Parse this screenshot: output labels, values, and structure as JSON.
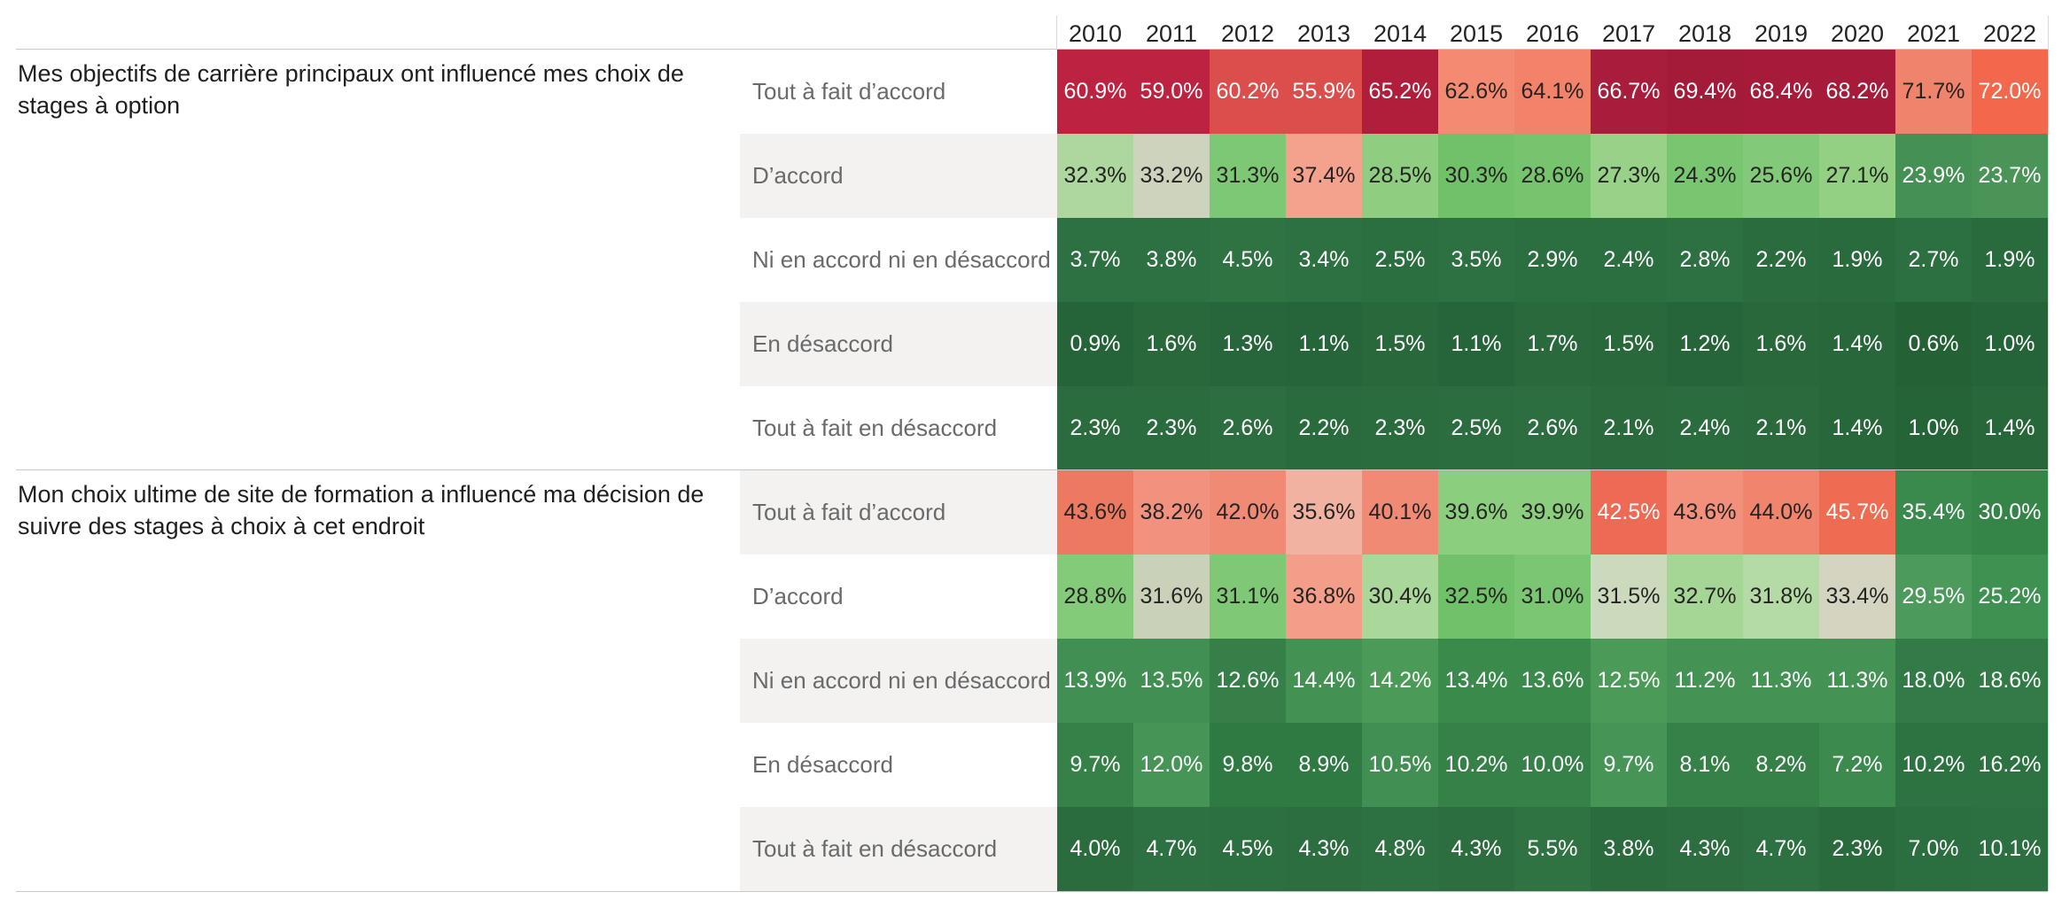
{
  "styles": {
    "background": "#ffffff",
    "stripe": "#f3f2f1",
    "grid_line": "#c9c9c9",
    "separator_line": "#d9d9d9",
    "cell_text_dark": "#252423",
    "cell_text_light": "#ffffff",
    "label_text": "#6a6a6a",
    "year_text": "#252423",
    "question_text": "#1f1f1f",
    "heat_red_dark": "#a81d3c",
    "heat_red_light": "#f58a72",
    "heat_green_dark": "#256438",
    "heat_green_light": "#add79e",
    "heat_neutral": "#cdd3bd"
  },
  "chart_data": {
    "type": "heatmap",
    "value_format": "percent_1dp",
    "columns": [
      "2010",
      "2011",
      "2012",
      "2013",
      "2014",
      "2015",
      "2016",
      "2017",
      "2018",
      "2019",
      "2020",
      "2021",
      "2022"
    ],
    "groups": [
      {
        "question": "Mes objectifs de carrière principaux ont influencé mes choix de stages à option",
        "rows": [
          {
            "label": "Tout à fait d’accord",
            "values": [
              60.9,
              59.0,
              60.2,
              55.9,
              65.2,
              62.6,
              64.1,
              66.7,
              69.4,
              68.4,
              68.2,
              71.7,
              72.0
            ],
            "colors": [
              "#bd2340",
              "#bd2340",
              "#dc4e4c",
              "#dc4e4c",
              "#b11e3c",
              "#f58a72",
              "#f3826a",
              "#a81d3c",
              "#a41a39",
              "#a61b3a",
              "#a61b3a",
              "#f0836c",
              "#f3674c"
            ]
          },
          {
            "label": "D’accord",
            "values": [
              32.3,
              33.2,
              31.3,
              37.4,
              28.5,
              30.3,
              28.6,
              27.3,
              24.3,
              25.6,
              27.1,
              23.9,
              23.7
            ],
            "colors": [
              "#add79e",
              "#cdd3bd",
              "#7dc874",
              "#f4a28e",
              "#8fcd81",
              "#70c169",
              "#76c46e",
              "#97d288",
              "#79c671",
              "#82ca79",
              "#93d084",
              "#459155",
              "#4a9458"
            ]
          },
          {
            "label": "Ni en accord ni en désaccord",
            "values": [
              3.7,
              3.8,
              4.5,
              3.4,
              2.5,
              3.5,
              2.9,
              2.4,
              2.8,
              2.2,
              1.9,
              2.7,
              1.9
            ],
            "colors": [
              "#2d7041",
              "#2d7041",
              "#2f7343",
              "#2d7041",
              "#2b6e3f",
              "#2d7041",
              "#2b6e3f",
              "#2b6e3f",
              "#2d7041",
              "#2a6c3e",
              "#296b3d",
              "#2c6f40",
              "#296b3d"
            ]
          },
          {
            "label": "En désaccord",
            "values": [
              0.9,
              1.6,
              1.3,
              1.1,
              1.5,
              1.1,
              1.7,
              1.5,
              1.2,
              1.6,
              1.4,
              0.6,
              1.0
            ],
            "colors": [
              "#256438",
              "#28683b",
              "#27663a",
              "#266539",
              "#28683b",
              "#266539",
              "#29693c",
              "#28683b",
              "#266539",
              "#28683b",
              "#27673a",
              "#246236",
              "#256438"
            ]
          },
          {
            "label": "Tout à fait en désaccord",
            "values": [
              2.3,
              2.3,
              2.6,
              2.2,
              2.3,
              2.5,
              2.6,
              2.1,
              2.4,
              2.1,
              1.4,
              1.0,
              1.4
            ],
            "colors": [
              "#2b6c3e",
              "#2b6c3e",
              "#2c6e40",
              "#2a6b3d",
              "#2b6c3e",
              "#2c6d3f",
              "#2c6e40",
              "#2a6a3c",
              "#2b6c3e",
              "#2a6a3c",
              "#276739",
              "#256437",
              "#276739"
            ]
          }
        ]
      },
      {
        "question": "Mon choix ultime de site de formation a influencé ma décision de suivre des stages à choix à cet endroit",
        "rows": [
          {
            "label": "Tout à fait d’accord",
            "values": [
              43.6,
              38.2,
              42.0,
              35.6,
              40.1,
              39.6,
              39.9,
              42.5,
              43.6,
              44.0,
              45.7,
              35.4,
              30.0
            ],
            "colors": [
              "#ee7961",
              "#f2917d",
              "#f18a75",
              "#f2b2a1",
              "#f18a75",
              "#8bce7d",
              "#8bce7d",
              "#ed6b54",
              "#f2907c",
              "#f0846d",
              "#ee6c52",
              "#3b8a4d",
              "#368548"
            ]
          },
          {
            "label": "D’accord",
            "values": [
              28.8,
              31.6,
              31.1,
              36.8,
              30.4,
              32.5,
              31.0,
              31.5,
              32.7,
              31.8,
              33.4,
              29.5,
              25.2
            ],
            "colors": [
              "#83ca79",
              "#c9d2b8",
              "#7fc976",
              "#f49d89",
              "#aad89b",
              "#70c169",
              "#7ac672",
              "#cbdabc",
              "#a5d696",
              "#b4dba5",
              "#d4d4c0",
              "#4c9a5c",
              "#3f9152"
            ]
          },
          {
            "label": "Ni en accord ni en désaccord",
            "values": [
              13.9,
              13.5,
              12.6,
              14.4,
              14.2,
              13.4,
              13.6,
              12.5,
              11.2,
              11.3,
              11.3,
              18.0,
              18.6
            ],
            "colors": [
              "#418f52",
              "#418f52",
              "#377f48",
              "#449253",
              "#4c9a58",
              "#3a8a4c",
              "#3a8a4c",
              "#4c9a58",
              "#449254",
              "#449254",
              "#449254",
              "#337b46",
              "#337b46"
            ]
          },
          {
            "label": "En désaccord",
            "values": [
              9.7,
              12.0,
              9.8,
              8.9,
              10.5,
              10.2,
              10.0,
              9.7,
              8.1,
              8.2,
              7.2,
              10.2,
              16.2
            ],
            "colors": [
              "#358148",
              "#479556",
              "#2f7a43",
              "#2f7a43",
              "#418f52",
              "#358148",
              "#358148",
              "#479556",
              "#358148",
              "#358148",
              "#3c8a4e",
              "#2d7341",
              "#2d7341"
            ]
          },
          {
            "label": "Tout à fait en désaccord",
            "values": [
              4.0,
              4.7,
              4.5,
              4.3,
              4.8,
              4.3,
              5.5,
              3.8,
              4.3,
              4.7,
              2.3,
              7.0,
              10.1
            ],
            "colors": [
              "#2b6c3e",
              "#2d7041",
              "#2c6f40",
              "#2c6e3f",
              "#2d7041",
              "#2c6e3f",
              "#2f7343",
              "#2b6c3e",
              "#2c6e3f",
              "#2d7041",
              "#2a6b3d",
              "#2b6e3f",
              "#2c6f40"
            ]
          }
        ]
      }
    ]
  }
}
